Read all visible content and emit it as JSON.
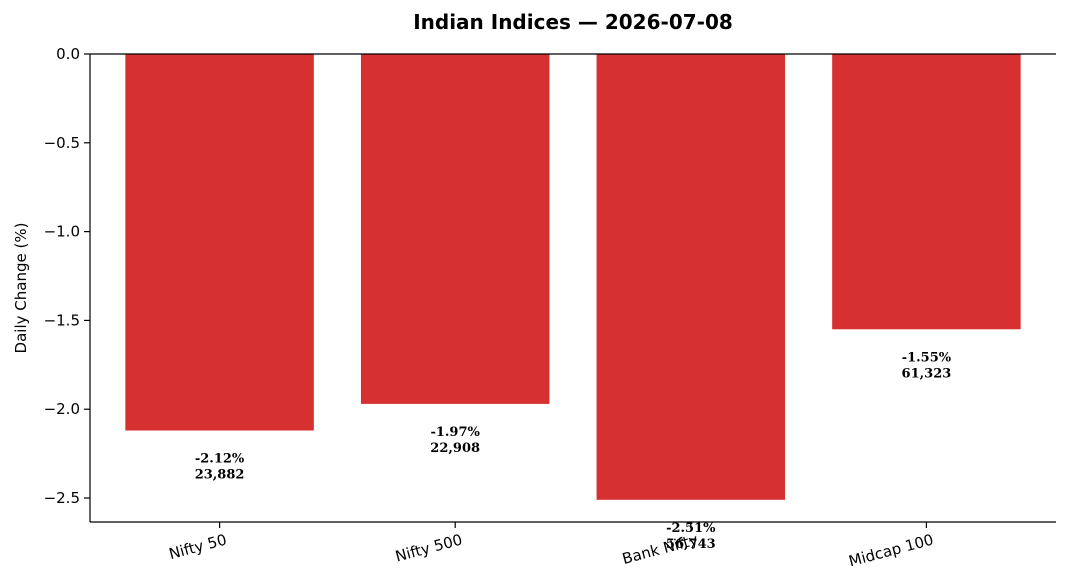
{
  "chart_data": {
    "type": "bar",
    "title": "Indian Indices — 2026-07-08",
    "xlabel": "",
    "ylabel": "Daily Change (%)",
    "categories": [
      "Nifty 50",
      "Nifty 500",
      "Bank Nifty",
      "Midcap 100"
    ],
    "values": [
      -2.12,
      -1.97,
      -2.51,
      -1.55
    ],
    "data_labels": [
      {
        "pct": "-2.12%",
        "level": "23,882"
      },
      {
        "pct": "-1.97%",
        "level": "22,908"
      },
      {
        "pct": "-2.51%",
        "level": "56,743"
      },
      {
        "pct": "-1.55%",
        "level": "61,323"
      }
    ],
    "yticks": [
      "0.0",
      "−0.5",
      "−1.0",
      "−1.5",
      "−2.0",
      "−2.5"
    ],
    "ytick_values": [
      0,
      -0.5,
      -1.0,
      -1.5,
      -2.0,
      -2.5
    ],
    "ylim": [
      -2.635,
      0
    ],
    "grid": false,
    "bar_color": "#d63031"
  }
}
